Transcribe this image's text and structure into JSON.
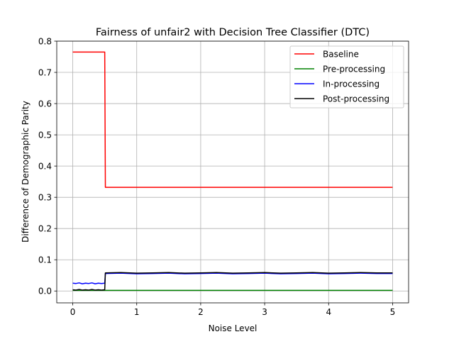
{
  "chart_data": {
    "type": "line",
    "title": "Fairness of unfair2 with Decision Tree Classifier (DTC)",
    "xlabel": "Noise Level",
    "ylabel": "Difference of Demographic Parity",
    "xlim": [
      -0.25,
      5.25
    ],
    "ylim": [
      -0.038,
      0.8
    ],
    "xticks": [
      0,
      1,
      2,
      3,
      4,
      5
    ],
    "xtick_labels": [
      "0",
      "1",
      "2",
      "3",
      "4",
      "5"
    ],
    "yticks": [
      0.0,
      0.1,
      0.2,
      0.3,
      0.4,
      0.5,
      0.6,
      0.7,
      0.8
    ],
    "ytick_labels": [
      "0.0",
      "0.1",
      "0.2",
      "0.3",
      "0.4",
      "0.5",
      "0.6",
      "0.7",
      "0.8"
    ],
    "grid": true,
    "legend_position": "top-right",
    "series": [
      {
        "name": "Baseline",
        "color": "#ff0000",
        "x": [
          0,
          0.5,
          0.51,
          5
        ],
        "y": [
          0.765,
          0.765,
          0.332,
          0.332
        ]
      },
      {
        "name": "Pre-processing",
        "color": "#008000",
        "x": [
          0,
          5
        ],
        "y": [
          0.002,
          0.002
        ]
      },
      {
        "name": "In-processing",
        "color": "#0000ff",
        "x": [
          0,
          0.05,
          0.1,
          0.15,
          0.2,
          0.25,
          0.3,
          0.35,
          0.4,
          0.45,
          0.5,
          0.51,
          0.75,
          1,
          1.25,
          1.5,
          1.75,
          2,
          2.25,
          2.5,
          2.75,
          3,
          3.25,
          3.5,
          3.75,
          4,
          4.25,
          4.5,
          4.75,
          5
        ],
        "y": [
          0.025,
          0.024,
          0.026,
          0.023,
          0.025,
          0.024,
          0.026,
          0.023,
          0.025,
          0.024,
          0.025,
          0.056,
          0.057,
          0.055,
          0.056,
          0.057,
          0.055,
          0.056,
          0.057,
          0.055,
          0.056,
          0.057,
          0.055,
          0.056,
          0.057,
          0.055,
          0.056,
          0.057,
          0.056,
          0.056
        ]
      },
      {
        "name": "Post-processing",
        "color": "#000000",
        "x": [
          0,
          0.05,
          0.1,
          0.15,
          0.2,
          0.25,
          0.3,
          0.35,
          0.4,
          0.45,
          0.5,
          0.51,
          0.75,
          1,
          1.25,
          1.5,
          1.75,
          2,
          2.25,
          2.5,
          2.75,
          3,
          3.25,
          3.5,
          3.75,
          4,
          4.25,
          4.5,
          4.75,
          5
        ],
        "y": [
          0.004,
          0.003,
          0.005,
          0.003,
          0.004,
          0.003,
          0.005,
          0.003,
          0.004,
          0.003,
          0.004,
          0.058,
          0.059,
          0.057,
          0.058,
          0.059,
          0.057,
          0.058,
          0.059,
          0.057,
          0.058,
          0.059,
          0.057,
          0.058,
          0.059,
          0.057,
          0.058,
          0.059,
          0.058,
          0.058
        ]
      }
    ]
  }
}
